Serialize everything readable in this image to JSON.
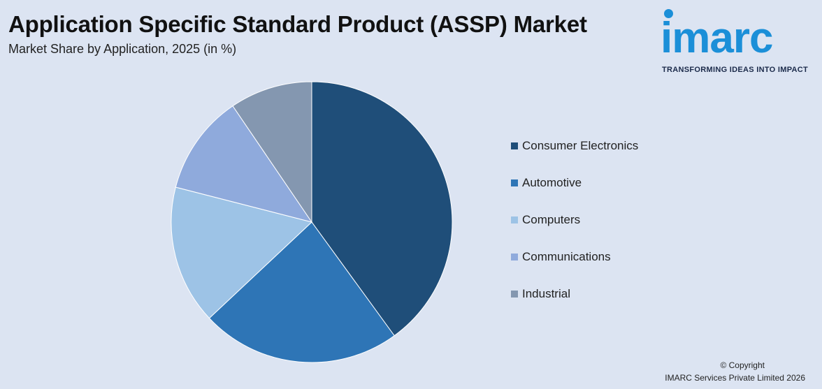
{
  "header": {
    "title": "Application Specific Standard Product (ASSP) Market",
    "subtitle": "Market Share by Application, 2025 (in %)"
  },
  "logo": {
    "word": "imarc",
    "tagline": "TRANSFORMING IDEAS INTO IMPACT"
  },
  "footer": {
    "copyright": "© Copyright",
    "company": "IMARC Services Private Limited 2026"
  },
  "chart_data": {
    "type": "pie",
    "title": "Market Share by Application, 2025 (in %)",
    "legend_position": "right",
    "series": [
      {
        "name": "Consumer Electronics",
        "value": 40,
        "color": "#1f4e79"
      },
      {
        "name": "Automotive",
        "value": 23,
        "color": "#2e75b6"
      },
      {
        "name": "Computers",
        "value": 16,
        "color": "#9dc3e6"
      },
      {
        "name": "Communications",
        "value": 11.5,
        "color": "#8faadc"
      },
      {
        "name": "Industrial",
        "value": 9.5,
        "color": "#8497b0"
      }
    ]
  }
}
